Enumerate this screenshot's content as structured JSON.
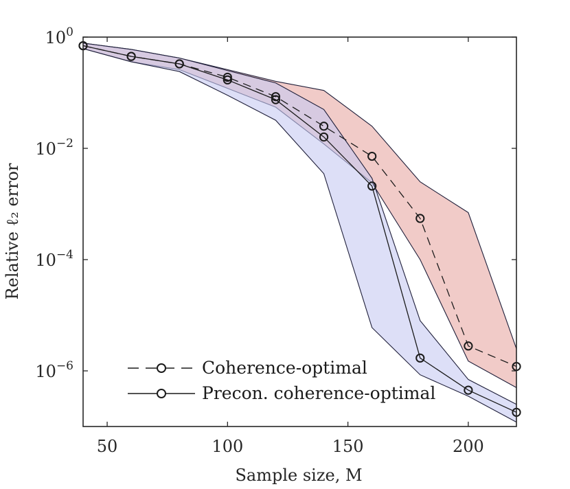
{
  "chart_data": {
    "type": "line",
    "title": "",
    "xlabel": "Sample size, M",
    "ylabel": "Relative ℓ₂ error",
    "yscale": "log",
    "xlim": [
      40,
      220
    ],
    "ylim": [
      1e-07,
      1
    ],
    "x_ticks": [
      50,
      100,
      150,
      200
    ],
    "x_tick_labels": [
      "50",
      "100",
      "150",
      "200"
    ],
    "y_ticks": [
      1,
      0.01,
      0.0001,
      1e-06
    ],
    "y_tick_labels": [
      {
        "base": "10",
        "exp": "0"
      },
      {
        "base": "10",
        "exp": "−2"
      },
      {
        "base": "10",
        "exp": "−4"
      },
      {
        "base": "10",
        "exp": "−6"
      }
    ],
    "x": [
      40,
      60,
      80,
      100,
      120,
      140,
      160,
      180,
      200,
      220
    ],
    "legend_position": "bottom-left",
    "series": [
      {
        "name": "Coherence-optimal",
        "line_style": "dashed",
        "marker": "circle",
        "color": "#1a1a1a",
        "band_color": "#e8a9a3",
        "values": [
          0.7,
          0.45,
          0.33,
          0.19,
          0.085,
          0.025,
          0.0072,
          0.00055,
          2.8e-06,
          1.2e-06
        ],
        "band_upper": [
          0.78,
          0.6,
          0.42,
          0.26,
          0.16,
          0.11,
          0.025,
          0.0025,
          0.0007,
          2.5e-06
        ],
        "band_lower": [
          0.62,
          0.36,
          0.26,
          0.12,
          0.055,
          0.012,
          0.0024,
          0.0001,
          1.5e-06,
          5e-07
        ]
      },
      {
        "name": "Precon. coherence-optimal",
        "line_style": "solid",
        "marker": "circle",
        "color": "#1a1a1a",
        "band_color": "#c7c9f2",
        "values": [
          0.7,
          0.45,
          0.33,
          0.17,
          0.075,
          0.016,
          0.0021,
          1.7e-06,
          4.5e-07,
          1.8e-07
        ],
        "band_upper": [
          0.78,
          0.6,
          0.42,
          0.25,
          0.15,
          0.05,
          0.0029,
          8e-06,
          7e-07,
          2.5e-07
        ],
        "band_lower": [
          0.62,
          0.36,
          0.24,
          0.09,
          0.032,
          0.0035,
          6e-06,
          8.5e-07,
          3.5e-07,
          1.2e-07
        ]
      }
    ]
  }
}
